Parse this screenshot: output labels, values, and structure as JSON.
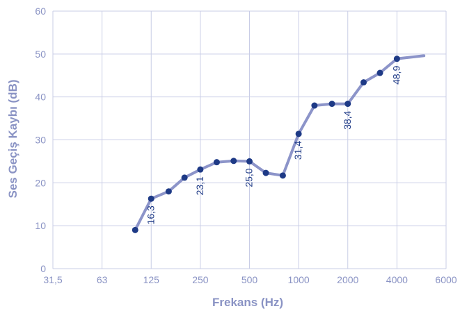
{
  "chart_data": {
    "type": "line",
    "xlabel": "Frekans (Hz)",
    "ylabel": "Ses Geçiş Kaybı (dB)",
    "x_ticks": [
      "31,5",
      "63",
      "125",
      "250",
      "500",
      "1000",
      "2000",
      "4000",
      "6000"
    ],
    "y_ticks": [
      "0",
      "10",
      "20",
      "30",
      "40",
      "50",
      "60"
    ],
    "ylim": [
      0,
      60
    ],
    "x_scale": "log",
    "grid": true,
    "series": [
      {
        "x": [
          100,
          125,
          160,
          200,
          250,
          315,
          400,
          500,
          630,
          800,
          1000,
          1250,
          1600,
          2000,
          2500,
          3150,
          4000,
          5000
        ],
        "y": [
          9.0,
          16.3,
          18.0,
          21.2,
          23.1,
          24.8,
          25.1,
          25.0,
          22.3,
          21.7,
          31.4,
          38.0,
          38.4,
          38.4,
          43.4,
          45.6,
          48.9,
          49.6
        ],
        "markers_x": [
          100,
          125,
          160,
          200,
          250,
          315,
          400,
          500,
          630,
          800,
          1000,
          1250,
          1600,
          2000,
          2500,
          3150,
          4000
        ],
        "data_labels": [
          {
            "x": 125,
            "y": 16.3,
            "text": "16,3"
          },
          {
            "x": 250,
            "y": 23.1,
            "text": "23,1"
          },
          {
            "x": 500,
            "y": 25.0,
            "text": "25,0"
          },
          {
            "x": 1000,
            "y": 31.4,
            "text": "31,4"
          },
          {
            "x": 2000,
            "y": 38.4,
            "text": "38,4"
          },
          {
            "x": 4000,
            "y": 48.9,
            "text": "48,9"
          }
        ]
      }
    ],
    "colors": {
      "line": "#8c94c9",
      "marker": "#1e3a86",
      "grid": "#c9cde6",
      "axis_text": "#8a93c4",
      "label_text": "#1e3a86"
    }
  }
}
